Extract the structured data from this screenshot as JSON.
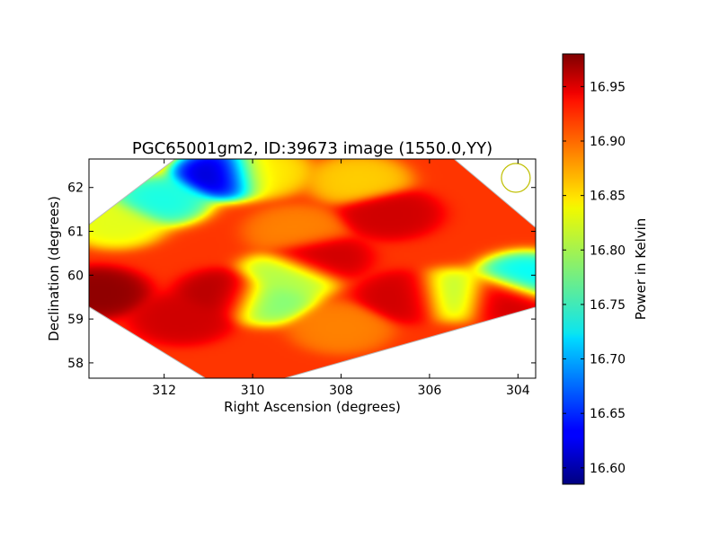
{
  "chart_data": {
    "type": "heatmap",
    "title": "PGC65001gm2, ID:39673 image (1550.0,YY)",
    "xlabel": "Right Ascension (degrees)",
    "ylabel": "Declination (degrees)",
    "xlim": [
      313.7,
      303.6
    ],
    "ylim": [
      57.65,
      62.65
    ],
    "x_ticks": [
      "312",
      "310",
      "308",
      "306",
      "304"
    ],
    "x_tick_values": [
      312,
      310,
      308,
      306,
      304
    ],
    "y_ticks": [
      "58",
      "59",
      "60",
      "61",
      "62"
    ],
    "y_tick_values": [
      58,
      59,
      60,
      61,
      62
    ],
    "colorbar": {
      "label": "Power in Kelvin",
      "min": 16.585,
      "max": 16.98,
      "ticks": [
        "16.60",
        "16.65",
        "16.70",
        "16.75",
        "16.80",
        "16.85",
        "16.90",
        "16.95"
      ],
      "tick_values": [
        16.6,
        16.65,
        16.7,
        16.75,
        16.8,
        16.85,
        16.9,
        16.95
      ],
      "colormap": "jet"
    },
    "coverage_region": [
      [
        311.3,
        63.0
      ],
      [
        313.9,
        61.0
      ],
      [
        313.9,
        59.4
      ],
      [
        310.5,
        57.3
      ],
      [
        303.5,
        59.3
      ],
      [
        303.5,
        61.0
      ],
      [
        305.5,
        62.7
      ]
    ],
    "base_level": 16.91,
    "features": [
      {
        "ra": 310.7,
        "dec": 62.3,
        "value": 16.61
      },
      {
        "ra": 312.1,
        "dec": 61.7,
        "value": 16.74
      },
      {
        "ra": 313.1,
        "dec": 61.2,
        "value": 16.82
      },
      {
        "ra": 309.7,
        "dec": 59.45,
        "value": 16.78
      },
      {
        "ra": 309.2,
        "dec": 59.98,
        "value": 16.8
      },
      {
        "ra": 305.45,
        "dec": 59.55,
        "value": 16.8
      },
      {
        "ra": 303.8,
        "dec": 59.95,
        "value": 16.73
      },
      {
        "ra": 307.6,
        "dec": 62.15,
        "value": 16.85
      },
      {
        "ra": 309.8,
        "dec": 62.35,
        "value": 16.84
      },
      {
        "ra": 313.5,
        "dec": 59.6,
        "value": 16.975
      },
      {
        "ra": 310.6,
        "dec": 59.55,
        "value": 16.96
      },
      {
        "ra": 308.5,
        "dec": 60.4,
        "value": 16.95
      },
      {
        "ra": 306.9,
        "dec": 61.4,
        "value": 16.95
      },
      {
        "ra": 306.5,
        "dec": 59.5,
        "value": 16.95
      },
      {
        "ra": 304.4,
        "dec": 59.5,
        "value": 16.95
      },
      {
        "ra": 311.6,
        "dec": 59.0,
        "value": 16.95
      },
      {
        "ra": 309.0,
        "dec": 61.0,
        "value": 16.88
      },
      {
        "ra": 308.0,
        "dec": 58.8,
        "value": 16.88
      }
    ],
    "beam_marker": {
      "ra": 304.05,
      "dec": 62.22,
      "color": "#bfbf00"
    },
    "grid": false
  }
}
